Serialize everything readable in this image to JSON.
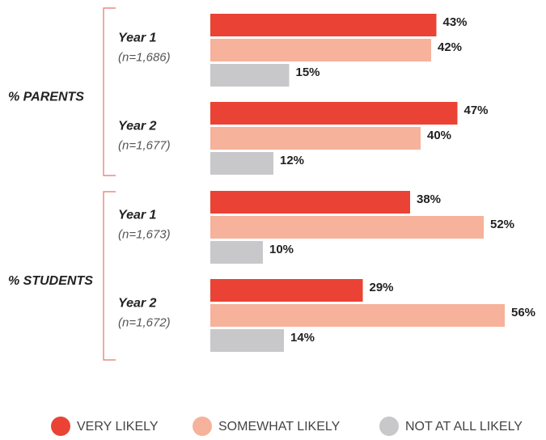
{
  "chart_data": {
    "type": "bar",
    "orientation": "horizontal",
    "groups": [
      {
        "name": "% PARENTS",
        "categories": [
          "Year 1",
          "Year 2"
        ],
        "sample_sizes": [
          "(n=1,686)",
          "(n=1,677)"
        ]
      },
      {
        "name": "% STUDENTS",
        "categories": [
          "Year 1",
          "Year 2"
        ],
        "sample_sizes": [
          "(n=1,673)",
          "(n=1,672)"
        ]
      }
    ],
    "series": [
      {
        "name": "VERY LIKELY",
        "color": "#ea4335",
        "values": [
          43,
          47,
          38,
          29
        ],
        "value_labels": [
          "43%",
          "47%",
          "38%",
          "29%"
        ]
      },
      {
        "name": "SOMEWHAT LIKELY",
        "color": "#f6b29b",
        "values": [
          42,
          40,
          52,
          56
        ],
        "value_labels": [
          "42%",
          "40%",
          "52%",
          "56%"
        ]
      },
      {
        "name": "NOT AT ALL LIKELY",
        "color": "#c8c8ca",
        "values": [
          15,
          12,
          10,
          14
        ],
        "value_labels": [
          "15%",
          "12%",
          "10%",
          "14%"
        ]
      }
    ],
    "legend": "bottom"
  }
}
